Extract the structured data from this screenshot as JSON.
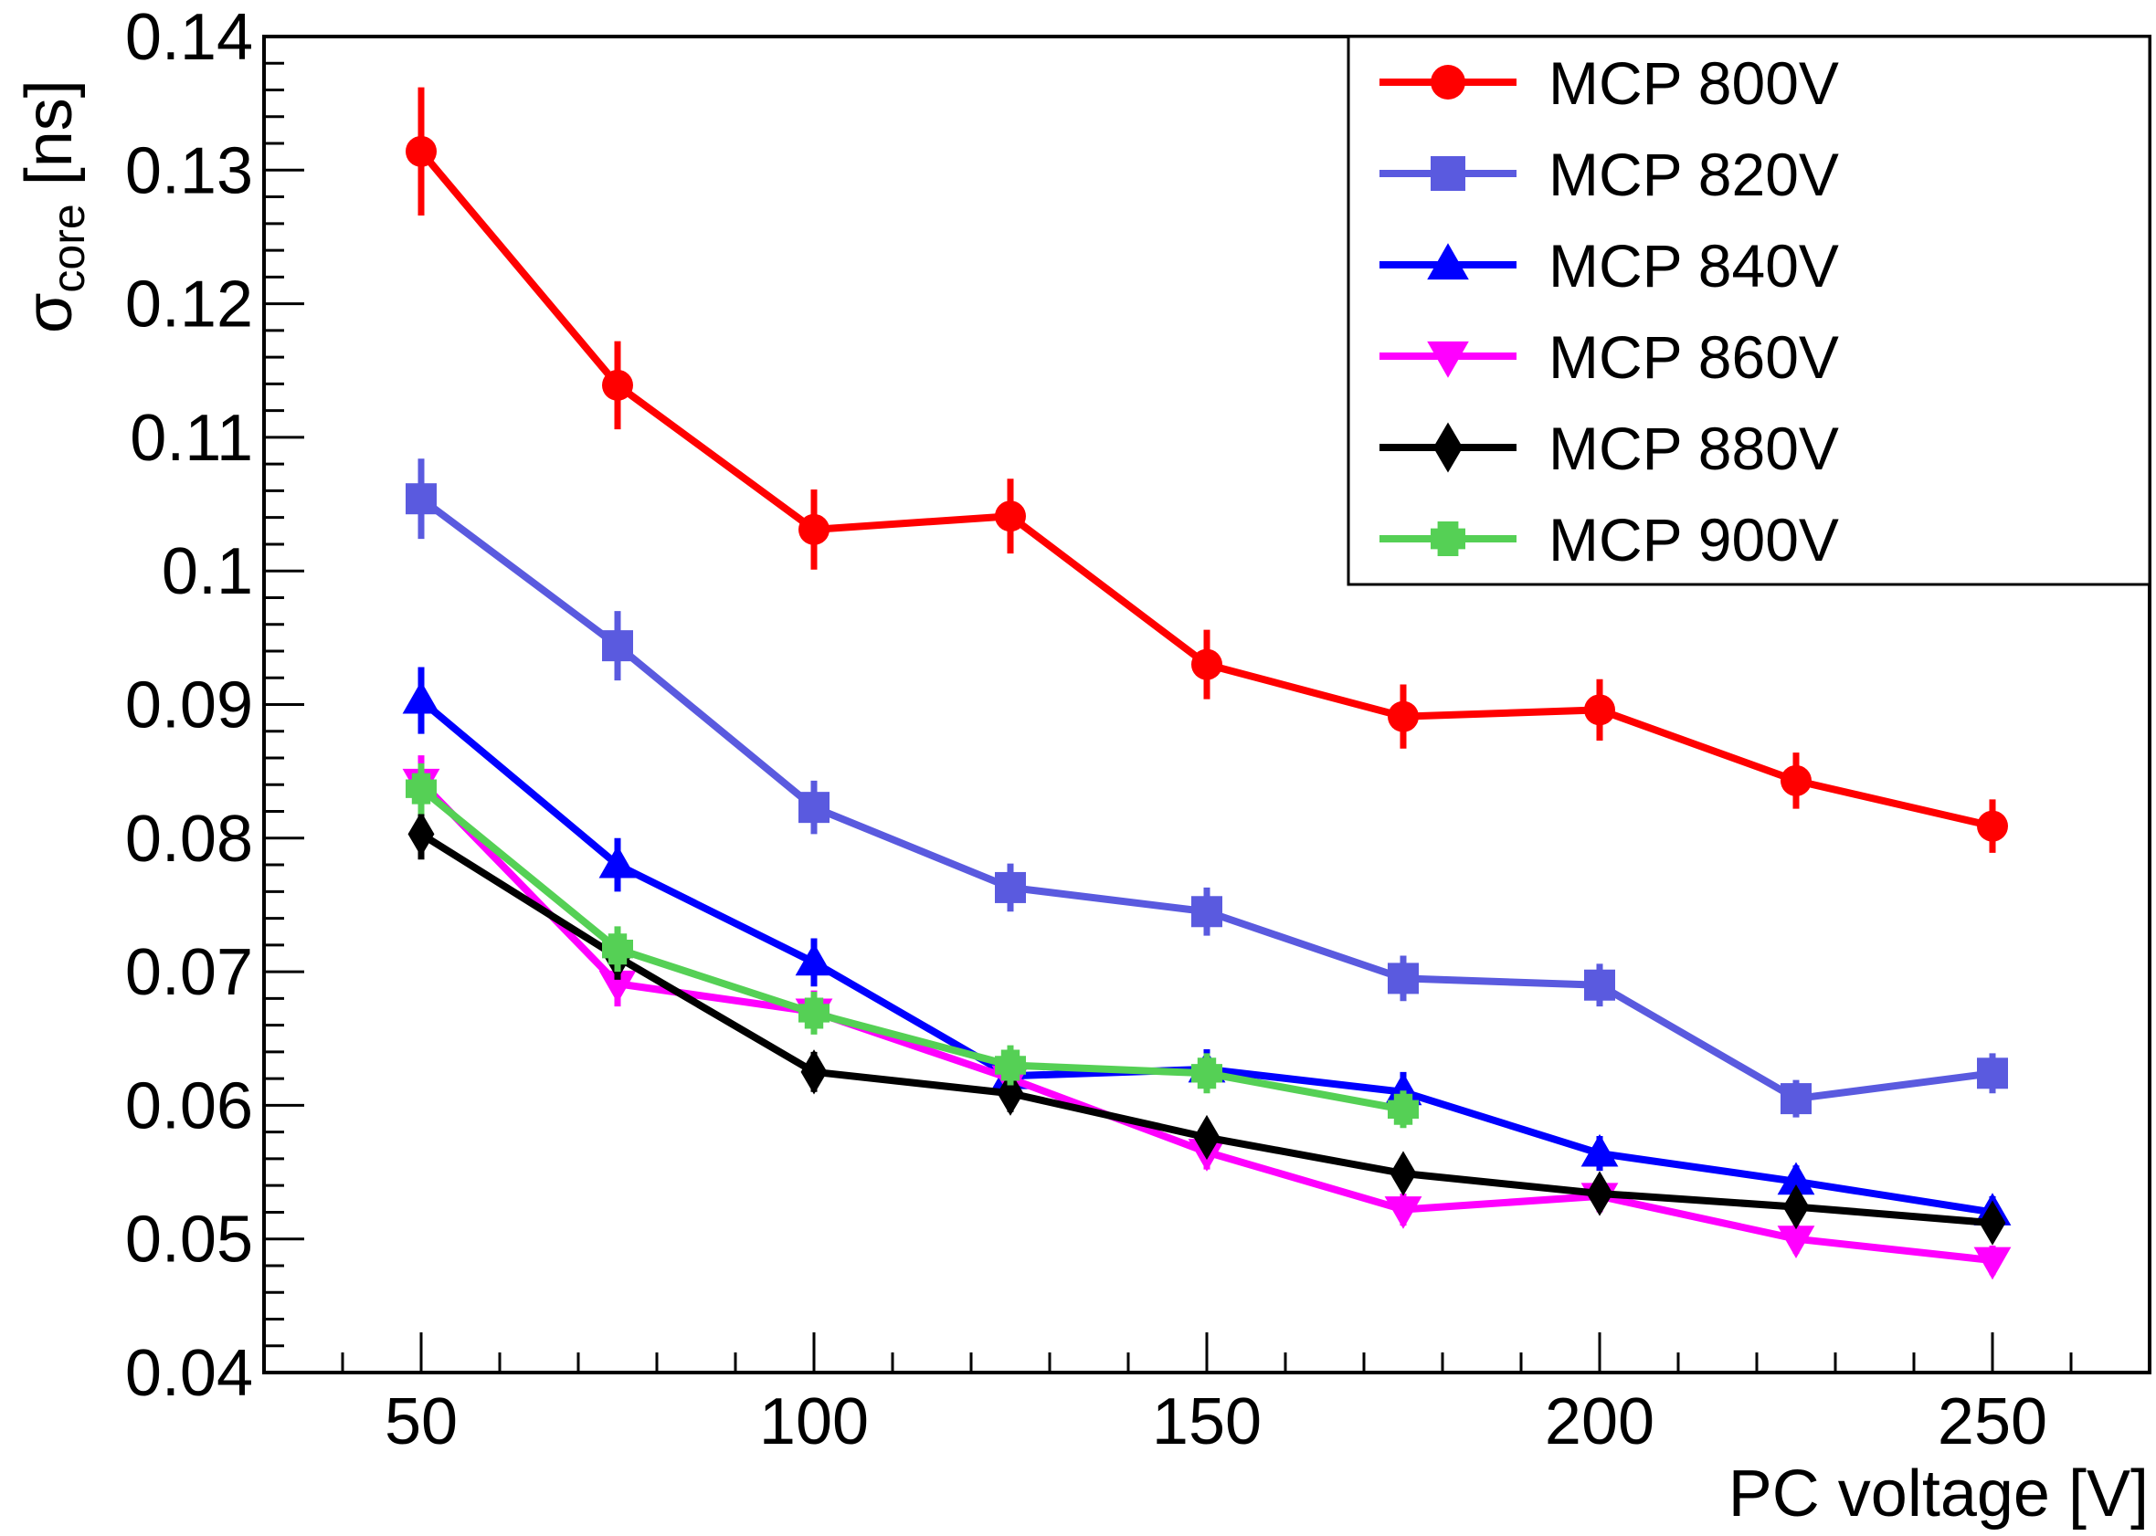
{
  "chart_data": {
    "type": "line",
    "title": "",
    "xlabel": "PC voltage [V]",
    "ylabel": {
      "symbol": "σ",
      "subscript": "core",
      "unit": " [ns]"
    },
    "xlim": [
      30,
      270
    ],
    "ylim": [
      0.04,
      0.14
    ],
    "xticks": [
      50,
      100,
      150,
      200,
      250
    ],
    "xtick_labels": [
      "50",
      "100",
      "150",
      "200",
      "250"
    ],
    "yticks": [
      0.04,
      0.05,
      0.06,
      0.07,
      0.08,
      0.09,
      0.1,
      0.11,
      0.12,
      0.13,
      0.14
    ],
    "ytick_labels": [
      "0.04",
      "0.05",
      "0.06",
      "0.07",
      "0.08",
      "0.09",
      "0.1",
      "0.11",
      "0.12",
      "0.13",
      "0.14"
    ],
    "grid": false,
    "legend_position": "top-right",
    "series": [
      {
        "name": "MCP 800V",
        "color": "#ff0000",
        "marker": "circle",
        "x": [
          50,
          75,
          100,
          125,
          150,
          175,
          200,
          225,
          250
        ],
        "y": [
          0.1314,
          0.1139,
          0.1031,
          0.1041,
          0.093,
          0.0891,
          0.0896,
          0.0843,
          0.0809
        ],
        "err": [
          0.0048,
          0.0033,
          0.003,
          0.0028,
          0.0026,
          0.0024,
          0.0023,
          0.0021,
          0.002
        ]
      },
      {
        "name": "MCP 820V",
        "color": "#5a5adf",
        "marker": "square",
        "x": [
          50,
          75,
          100,
          125,
          150,
          175,
          200,
          225,
          250
        ],
        "y": [
          0.1054,
          0.0944,
          0.0823,
          0.0763,
          0.0745,
          0.0695,
          0.069,
          0.0605,
          0.0624
        ],
        "err": [
          0.003,
          0.0026,
          0.002,
          0.0018,
          0.0018,
          0.0017,
          0.0016,
          0.0014,
          0.0015
        ]
      },
      {
        "name": "MCP 840V",
        "color": "#0000ff",
        "marker": "triangle-up",
        "x": [
          50,
          75,
          100,
          125,
          150,
          175,
          200,
          225,
          250
        ],
        "y": [
          0.0903,
          0.078,
          0.0707,
          0.0622,
          0.0627,
          0.061,
          0.0564,
          0.0543,
          0.052
        ],
        "err": [
          0.0025,
          0.002,
          0.0018,
          0.0015,
          0.0015,
          0.0015,
          0.0013,
          0.0012,
          0.0012
        ]
      },
      {
        "name": "MCP 860V",
        "color": "#ff00ff",
        "marker": "triangle-down",
        "x": [
          50,
          75,
          100,
          125,
          150,
          175,
          200,
          225,
          250
        ],
        "y": [
          0.0842,
          0.0691,
          0.067,
          0.062,
          0.0565,
          0.0522,
          0.0532,
          0.05,
          0.0484
        ],
        "err": [
          0.002,
          0.0017,
          0.0016,
          0.0015,
          0.0013,
          0.0012,
          0.0012,
          0.0011,
          0.0011
        ]
      },
      {
        "name": "MCP 880V",
        "color": "#000000",
        "marker": "diamond",
        "x": [
          50,
          75,
          100,
          125,
          150,
          175,
          200,
          225,
          250
        ],
        "y": [
          0.0803,
          0.0711,
          0.0625,
          0.0609,
          0.0576,
          0.0549,
          0.0534,
          0.0524,
          0.0512
        ],
        "err": [
          0.0019,
          0.0017,
          0.0015,
          0.0014,
          0.0013,
          0.0012,
          0.0012,
          0.0012,
          0.0011
        ]
      },
      {
        "name": "MCP 900V",
        "color": "#55d055",
        "marker": "cross",
        "x": [
          50,
          75,
          100,
          125,
          150,
          175
        ],
        "y": [
          0.0837,
          0.0717,
          0.0669,
          0.063,
          0.0624,
          0.0597
        ],
        "err": [
          0.0019,
          0.0017,
          0.0016,
          0.0015,
          0.0015,
          0.0014
        ]
      }
    ]
  }
}
